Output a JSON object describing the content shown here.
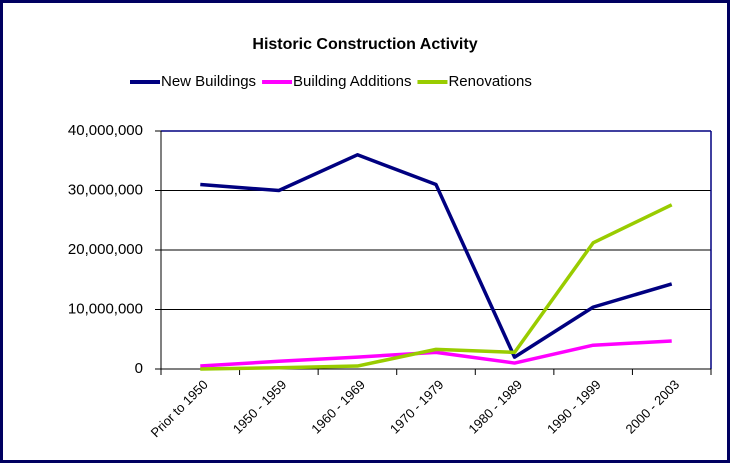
{
  "chart_data": {
    "type": "line",
    "title": "Historic Construction Activity",
    "categories": [
      "Prior to 1950",
      "1950 - 1959",
      "1960 - 1969",
      "1970 - 1979",
      "1980 - 1989",
      "1990 - 1999",
      "2000 - 2003"
    ],
    "series": [
      {
        "name": "New Buildings",
        "color": "#000080",
        "values": [
          31000000,
          30000000,
          36000000,
          31000000,
          2000000,
          10400000,
          14300000
        ]
      },
      {
        "name": "Building Additions",
        "color": "#ff00ff",
        "values": [
          500000,
          1300000,
          2000000,
          2800000,
          1000000,
          4000000,
          4700000
        ]
      },
      {
        "name": "Renovations",
        "color": "#99cc00",
        "values": [
          0,
          200000,
          500000,
          3300000,
          2800000,
          21200000,
          27600000
        ]
      }
    ],
    "ylim": [
      0,
      40000000
    ],
    "yticks": [
      0,
      {
        "value": 10000000,
        "label": "10,000,000"
      },
      {
        "value": 20000000,
        "label": "20,000,000"
      },
      {
        "value": 30000000,
        "label": "30,000,000"
      },
      {
        "value": 40000000,
        "label": "40,000,000"
      }
    ],
    "grid": true,
    "legend": "top"
  }
}
